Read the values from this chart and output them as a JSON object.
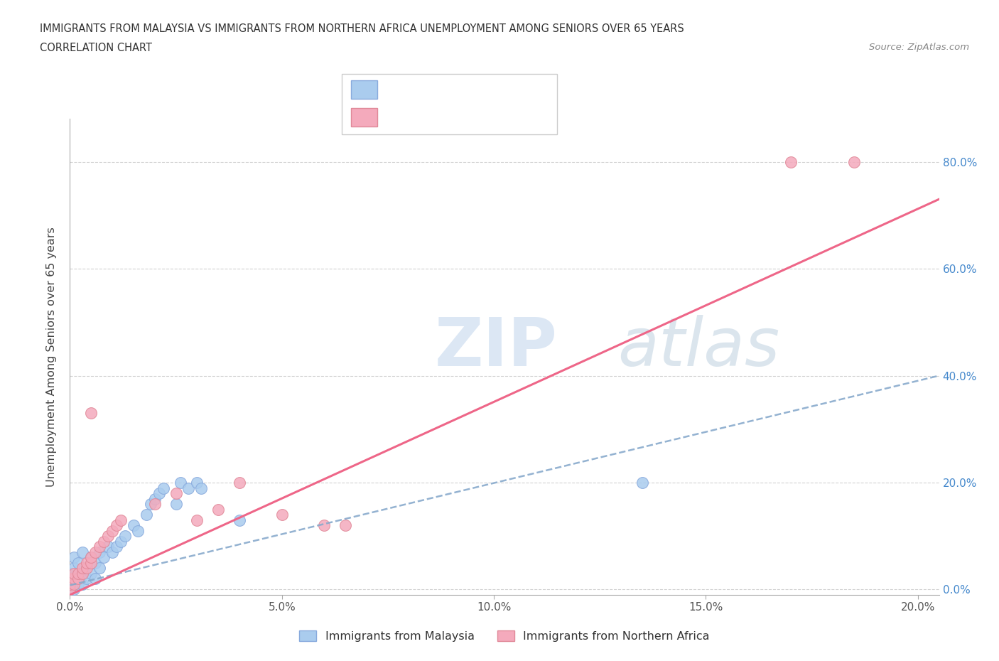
{
  "title_line1": "IMMIGRANTS FROM MALAYSIA VS IMMIGRANTS FROM NORTHERN AFRICA UNEMPLOYMENT AMONG SENIORS OVER 65 YEARS",
  "title_line2": "CORRELATION CHART",
  "source_text": "Source: ZipAtlas.com",
  "ylabel": "Unemployment Among Seniors over 65 years",
  "watermark_zip": "ZIP",
  "watermark_atlas": "atlas",
  "color_malaysia": "#aaccee",
  "color_malaysia_edge": "#88aadd",
  "color_n_africa": "#f4aabc",
  "color_n_africa_edge": "#e08898",
  "color_malaysia_line": "#88aacc",
  "color_n_africa_line": "#ee6688",
  "xlim": [
    0.0,
    0.205
  ],
  "ylim": [
    -0.01,
    0.88
  ],
  "yticks": [
    0.0,
    0.2,
    0.4,
    0.6,
    0.8
  ],
  "ytick_labels": [
    "0.0%",
    "20.0%",
    "40.0%",
    "60.0%",
    "80.0%"
  ],
  "xticks": [
    0.0,
    0.05,
    0.1,
    0.15,
    0.2
  ],
  "xtick_labels": [
    "0.0%",
    "5.0%",
    "10.0%",
    "15.0%",
    "20.0%"
  ],
  "malaysia_x": [
    0.0,
    0.0,
    0.0,
    0.0,
    0.001,
    0.001,
    0.001,
    0.001,
    0.001,
    0.002,
    0.002,
    0.002,
    0.003,
    0.003,
    0.003,
    0.004,
    0.004,
    0.005,
    0.005,
    0.006,
    0.006,
    0.007,
    0.007,
    0.008,
    0.009,
    0.01,
    0.011,
    0.012,
    0.013,
    0.015,
    0.016,
    0.018,
    0.019,
    0.02,
    0.021,
    0.022,
    0.025,
    0.026,
    0.028,
    0.03,
    0.031,
    0.04,
    0.135
  ],
  "malaysia_y": [
    0.0,
    0.01,
    0.02,
    0.03,
    0.0,
    0.01,
    0.02,
    0.04,
    0.06,
    0.01,
    0.02,
    0.05,
    0.01,
    0.03,
    0.07,
    0.02,
    0.04,
    0.03,
    0.06,
    0.02,
    0.05,
    0.04,
    0.07,
    0.06,
    0.08,
    0.07,
    0.08,
    0.09,
    0.1,
    0.12,
    0.11,
    0.14,
    0.16,
    0.17,
    0.18,
    0.19,
    0.16,
    0.2,
    0.19,
    0.2,
    0.19,
    0.13,
    0.2
  ],
  "n_africa_x": [
    0.0,
    0.0,
    0.0,
    0.001,
    0.001,
    0.001,
    0.002,
    0.002,
    0.003,
    0.003,
    0.004,
    0.004,
    0.005,
    0.005,
    0.006,
    0.007,
    0.008,
    0.009,
    0.01,
    0.011,
    0.012,
    0.02,
    0.025,
    0.03,
    0.035,
    0.04,
    0.05,
    0.06,
    0.005,
    0.065,
    0.17,
    0.185
  ],
  "n_africa_y": [
    0.0,
    0.01,
    0.02,
    0.01,
    0.02,
    0.03,
    0.02,
    0.03,
    0.03,
    0.04,
    0.04,
    0.05,
    0.05,
    0.06,
    0.07,
    0.08,
    0.09,
    0.1,
    0.11,
    0.12,
    0.13,
    0.16,
    0.18,
    0.13,
    0.15,
    0.2,
    0.14,
    0.12,
    0.33,
    0.12,
    0.8,
    0.8
  ],
  "malaysia_line_x": [
    0.0,
    0.205
  ],
  "malaysia_line_y": [
    0.008,
    0.4
  ],
  "n_africa_line_x": [
    0.0,
    0.205
  ],
  "n_africa_line_y": [
    -0.01,
    0.73
  ]
}
